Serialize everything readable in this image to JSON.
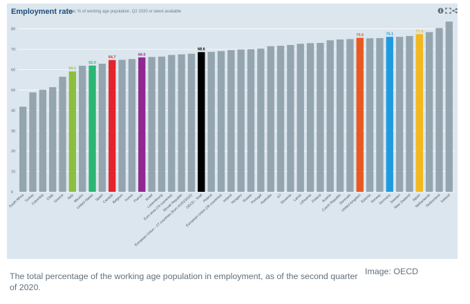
{
  "header": {
    "title": "Employment rate",
    "subtitle": "Total, % of working age population, Q2 2020 or latest available",
    "icons": [
      "info-icon",
      "expand-icon",
      "share-icon"
    ]
  },
  "caption": "The total percentage of the working age population in employment, as of the second quarter of 2020.",
  "credit": "Image: OECD",
  "colors": {
    "default": "#95a5b0",
    "Italy": "#8bbf3d",
    "United States": "#2bb673",
    "Canada": "#e5232a",
    "France": "#92278f",
    "OECD - Total": "#000000",
    "United Kingdom": "#e8581f",
    "Germany": "#1e9be0",
    "Japan": "#f2b81c"
  },
  "chart_data": {
    "type": "bar",
    "title": "Employment rate",
    "subtitle": "Total, % of working age population, Q2 2020 or latest available",
    "xlabel": "",
    "ylabel": "",
    "ylim": [
      0,
      85
    ],
    "yticks": [
      0,
      10,
      20,
      30,
      40,
      50,
      60,
      70,
      80
    ],
    "grid": true,
    "categories": [
      "South Africa",
      "Turkey",
      "Colombia",
      "Chile",
      "Greece",
      "Italy",
      "Mexico",
      "United States",
      "Spain",
      "Canada",
      "Belgium",
      "Korea",
      "France",
      "Israel",
      "Luxembourg",
      "Euro area (19 countries)",
      "Slovak Republic",
      "European Union – 27 countries (from 01/02/2020)",
      "OECD - Total",
      "Poland",
      "European Union (28 countries)",
      "Ireland",
      "Hungary",
      "Russia",
      "Portugal",
      "Australia",
      "G7",
      "Slovenia",
      "Latvia",
      "Lithuania",
      "Finland",
      "Austria",
      "Czech Republic",
      "Denmark",
      "United Kingdom",
      "Estonia",
      "Norway",
      "Germany",
      "Sweden",
      "New Zealand",
      "Japan",
      "Netherlands",
      "Switzerland",
      "Iceland"
    ],
    "values": [
      41.8,
      48.8,
      50.1,
      51.4,
      56.5,
      59.1,
      61.9,
      62.0,
      62.9,
      64.7,
      64.8,
      65.2,
      66.0,
      66.2,
      66.4,
      67.2,
      67.5,
      67.8,
      68.6,
      68.7,
      69.1,
      69.6,
      69.9,
      70.0,
      70.3,
      71.5,
      71.7,
      72.1,
      72.7,
      73.0,
      73.1,
      74.4,
      74.8,
      75.0,
      75.6,
      75.4,
      75.5,
      76.1,
      76.1,
      76.5,
      77.4,
      78.4,
      80.4,
      83.6
    ],
    "data_labels": {
      "Italy": "59.1",
      "United States": "62.0",
      "Canada": "64.7",
      "France": "66.0",
      "OECD - Total": "68.6",
      "United Kingdom": "75.6",
      "Germany": "76.1",
      "Japan": "77.4"
    }
  }
}
